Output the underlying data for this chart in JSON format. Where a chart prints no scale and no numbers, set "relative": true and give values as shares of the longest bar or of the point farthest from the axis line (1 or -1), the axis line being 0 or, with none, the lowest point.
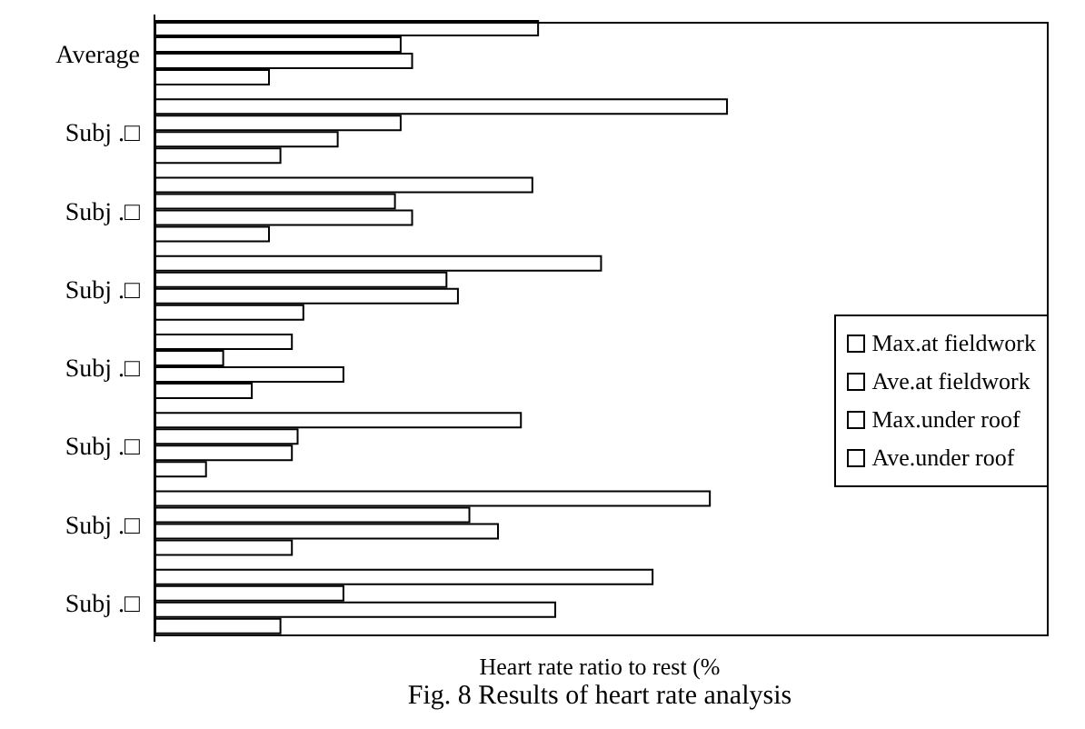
{
  "chart_data": {
    "type": "bar",
    "orientation": "horizontal",
    "relative": true,
    "xlabel": "Heart rate ratio to rest (%",
    "annotations": [
      "Fig. 8 Results of heart rate analysis"
    ],
    "categories": [
      "Average",
      "Subj .□",
      "Subj .□",
      "Subj .□",
      "Subj .□",
      "Subj .□",
      "Subj .□",
      "Subj .□"
    ],
    "legend": "right",
    "series": [
      {
        "name": "Max.at fieldwork",
        "color": "#ffffff",
        "values": [
          0.67,
          1.0,
          0.66,
          0.78,
          0.24,
          0.64,
          0.97,
          0.87
        ]
      },
      {
        "name": "Ave.at fieldwork",
        "color": "#ffffff",
        "values": [
          0.43,
          0.43,
          0.42,
          0.51,
          0.12,
          0.25,
          0.55,
          0.33
        ]
      },
      {
        "name": "Max.under roof",
        "color": "#ffffff",
        "values": [
          0.45,
          0.32,
          0.45,
          0.53,
          0.33,
          0.24,
          0.6,
          0.7
        ]
      },
      {
        "name": "Ave.under roof",
        "color": "#ffffff",
        "values": [
          0.2,
          0.22,
          0.2,
          0.26,
          0.17,
          0.09,
          0.24,
          0.22
        ]
      }
    ]
  }
}
